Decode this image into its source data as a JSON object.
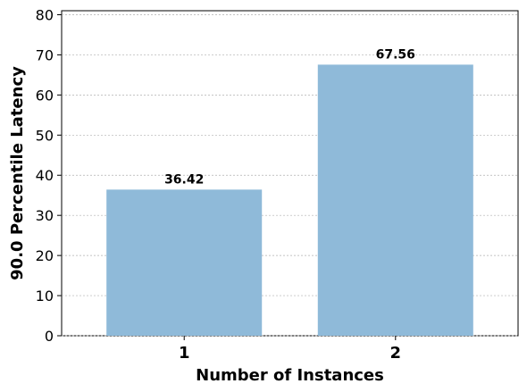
{
  "chart_data": {
    "type": "bar",
    "categories": [
      "1",
      "2"
    ],
    "values": [
      36.42,
      67.56
    ],
    "data_labels": [
      "36.42",
      "67.56"
    ],
    "xlabel": "Number of Instances",
    "ylabel": "90.0 Percentile Latency",
    "ylim": [
      0,
      81
    ],
    "yticks": [
      0,
      10,
      20,
      30,
      40,
      50,
      60,
      70,
      80
    ],
    "grid": "horizontal dashed",
    "bar_color": "#8fbad9"
  }
}
